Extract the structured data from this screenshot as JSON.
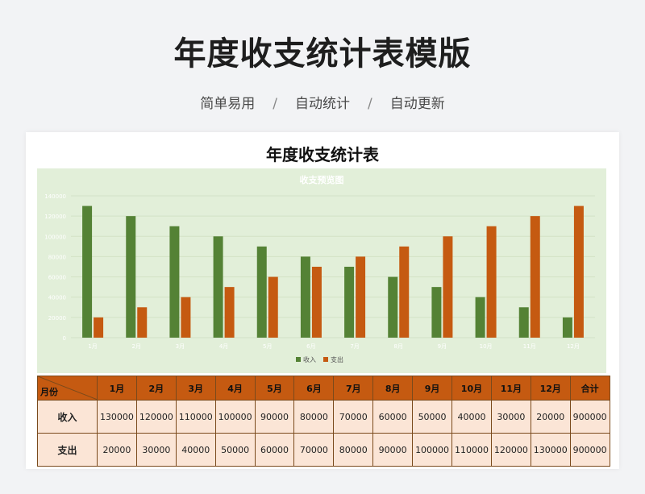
{
  "header": {
    "title": "年度收支统计表模版",
    "tags": [
      "简单易用",
      "自动统计",
      "自动更新"
    ],
    "separator": "/"
  },
  "sheet": {
    "title": "年度收支统计表"
  },
  "chart_data": {
    "type": "bar",
    "title": "收支预览图",
    "categories": [
      "1月",
      "2月",
      "3月",
      "4月",
      "5月",
      "6月",
      "7月",
      "8月",
      "9月",
      "10月",
      "11月",
      "12月"
    ],
    "series": [
      {
        "name": "收入",
        "color": "#548235",
        "values": [
          130000,
          120000,
          110000,
          100000,
          90000,
          80000,
          70000,
          60000,
          50000,
          40000,
          30000,
          20000
        ]
      },
      {
        "name": "支出",
        "color": "#c55a11",
        "values": [
          20000,
          30000,
          40000,
          50000,
          60000,
          70000,
          80000,
          90000,
          100000,
          110000,
          120000,
          130000
        ]
      }
    ],
    "ylim": [
      0,
      140000
    ],
    "yticks": [
      "0",
      "20000",
      "40000",
      "60000",
      "80000",
      "100000",
      "120000",
      "140000"
    ],
    "grid": true,
    "legend": "bottom"
  },
  "table": {
    "corner_label": "月份",
    "headers": [
      "1月",
      "2月",
      "3月",
      "4月",
      "5月",
      "6月",
      "7月",
      "8月",
      "9月",
      "10月",
      "11月",
      "12月",
      "合计"
    ],
    "rows": [
      {
        "label": "收入",
        "values": [
          "130000",
          "120000",
          "110000",
          "100000",
          "90000",
          "80000",
          "70000",
          "60000",
          "50000",
          "40000",
          "30000",
          "20000",
          "900000"
        ]
      },
      {
        "label": "支出",
        "values": [
          "20000",
          "30000",
          "40000",
          "50000",
          "60000",
          "70000",
          "80000",
          "90000",
          "100000",
          "110000",
          "120000",
          "130000",
          "900000"
        ]
      }
    ],
    "colors": {
      "header_bg": "#c55a11",
      "cell_bg": "#fbe5d6"
    }
  }
}
